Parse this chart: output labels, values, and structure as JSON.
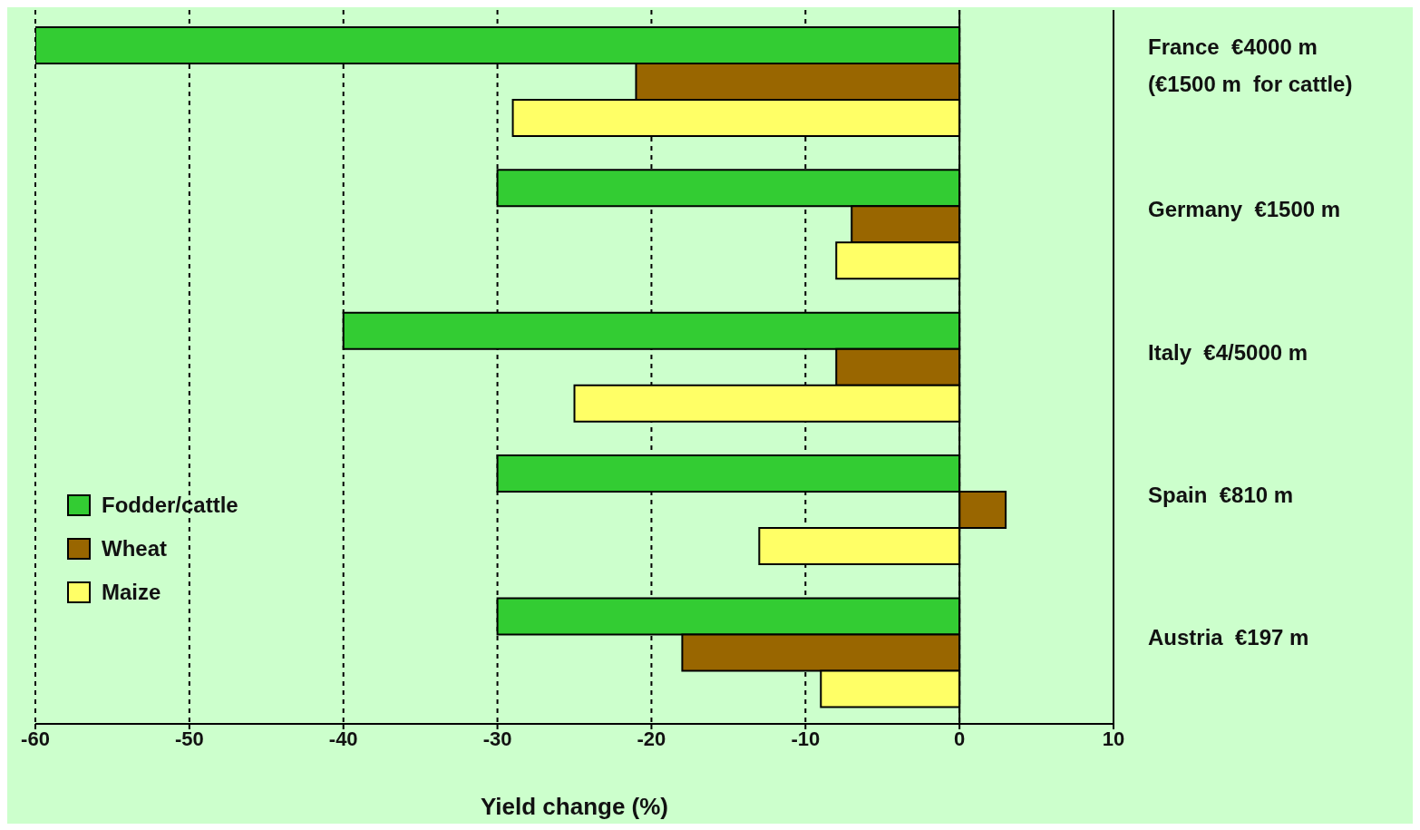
{
  "chart_data": {
    "type": "bar",
    "orientation": "horizontal",
    "xlabel": "Yield change (%)",
    "categories": [
      "France  €4000 m\n(€1500 m  for cattle)",
      "Germany  €1500 m",
      "Italy  €4/5000 m",
      "Spain  €810 m",
      "Austria  €197 m"
    ],
    "series": [
      {
        "name": "Fodder/cattle",
        "color": "#33cc33",
        "values": [
          -60,
          -30,
          -40,
          -30,
          -30
        ]
      },
      {
        "name": "Wheat",
        "color": "#996600",
        "values": [
          -21,
          -7,
          -8,
          3,
          -18
        ]
      },
      {
        "name": "Maize",
        "color": "#ffff66",
        "values": [
          -29,
          -8,
          -25,
          -13,
          -9
        ]
      }
    ],
    "xlim": [
      -60,
      10
    ],
    "xticks": [
      -60,
      -50,
      -40,
      -30,
      -20,
      -10,
      0,
      10
    ],
    "grid": "x",
    "legend": "bottom left"
  }
}
